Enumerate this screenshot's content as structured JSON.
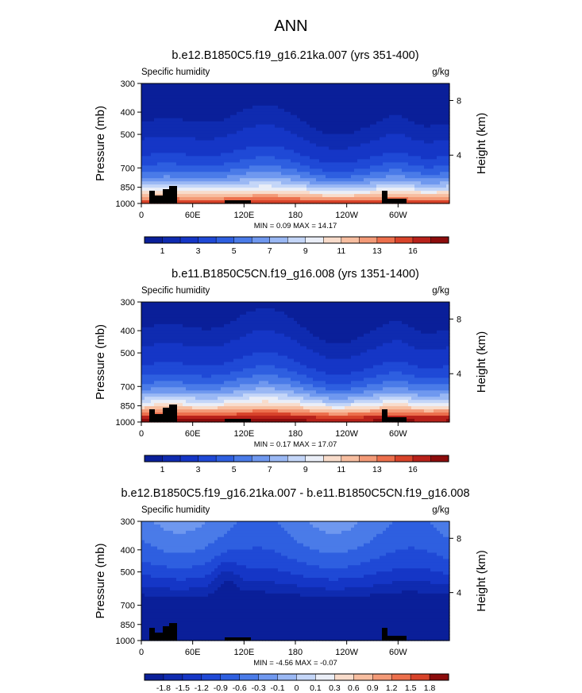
{
  "figure": {
    "title": "ANN"
  },
  "chart_data": [
    {
      "type": "heatmap",
      "title": "b.e12.B1850C5.f19_g16.21ka.007 (yrs 351-400)",
      "left_label": "Specific humidity",
      "units": "g/kg",
      "ylabel": "Pressure (mb)",
      "ylabel_right": "Height (km)",
      "xticks": [
        "0",
        "60E",
        "120E",
        "180",
        "120W",
        "60W"
      ],
      "yticks": [
        "300",
        "400",
        "500",
        "700",
        "850",
        "1000"
      ],
      "right_ticks": [
        "8",
        "4"
      ],
      "stats": "MIN =  0.09  MAX = 14.17",
      "colorbar_labels": [
        "1",
        "3",
        "5",
        "7",
        "9",
        "11",
        "13",
        "16"
      ],
      "levels": [
        0.5,
        1,
        2,
        3,
        4,
        5,
        6,
        7,
        8,
        9,
        10,
        11,
        12,
        13,
        14,
        16
      ],
      "min": 0.09,
      "max": 14.17
    },
    {
      "type": "heatmap",
      "title": "b.e11.B1850C5CN.f19_g16.008 (yrs 1351-1400)",
      "left_label": "Specific humidity",
      "units": "g/kg",
      "ylabel": "Pressure (mb)",
      "ylabel_right": "Height (km)",
      "xticks": [
        "0",
        "60E",
        "120E",
        "180",
        "120W",
        "60W"
      ],
      "yticks": [
        "300",
        "400",
        "500",
        "700",
        "850",
        "1000"
      ],
      "right_ticks": [
        "8",
        "4"
      ],
      "stats": "MIN =  0.17  MAX = 17.07",
      "colorbar_labels": [
        "1",
        "3",
        "5",
        "7",
        "9",
        "11",
        "13",
        "16"
      ],
      "levels": [
        0.5,
        1,
        2,
        3,
        4,
        5,
        6,
        7,
        8,
        9,
        10,
        11,
        12,
        13,
        14,
        16
      ],
      "min": 0.17,
      "max": 17.07
    },
    {
      "type": "heatmap",
      "title": "b.e12.B1850C5.f19_g16.21ka.007 - b.e11.B1850C5CN.f19_g16.008",
      "left_label": "Specific humidity",
      "units": "g/kg",
      "ylabel": "Pressure (mb)",
      "ylabel_right": "Height (km)",
      "xticks": [
        "0",
        "60E",
        "120E",
        "180",
        "120W",
        "60W"
      ],
      "yticks": [
        "300",
        "400",
        "500",
        "700",
        "850",
        "1000"
      ],
      "right_ticks": [
        "8",
        "4"
      ],
      "stats": "MIN = -4.56  MAX = -0.07",
      "colorbar_labels": [
        "-1.8",
        "-1.5",
        "-1.2",
        "-0.9",
        "-0.6",
        "-0.3",
        "-0.1",
        "0",
        "0.1",
        "0.3",
        "0.6",
        "0.9",
        "1.2",
        "1.5",
        "1.8"
      ],
      "levels": [
        -1.8,
        -1.5,
        -1.2,
        -0.9,
        -0.6,
        -0.3,
        -0.1,
        0,
        0.1,
        0.3,
        0.6,
        0.9,
        1.2,
        1.5,
        1.8
      ],
      "min": -4.56,
      "max": -0.07
    }
  ],
  "colors": {
    "palette16": [
      "#0a1f99",
      "#0f2bb0",
      "#1536c6",
      "#1f49d6",
      "#2e5fe0",
      "#4a7be8",
      "#6f98ef",
      "#9ab8f4",
      "#c4d6f8",
      "#eaeef7",
      "#f8dccb",
      "#f7bea0",
      "#f39a77",
      "#ec6f4c",
      "#d8432a",
      "#b8211a",
      "#8c0c0c"
    ],
    "diff_palette": [
      "#0a1f99",
      "#0f2bb0",
      "#1536c6",
      "#1f49d6",
      "#2e5fe0",
      "#4a7be8",
      "#6f98ef",
      "#9ab8f4",
      "#c4d6f8",
      "#eaeef7",
      "#f8dccb",
      "#f7bea0",
      "#f39a77",
      "#ec6f4c",
      "#d8432a",
      "#8c0c0c"
    ],
    "topography": "#000000"
  }
}
